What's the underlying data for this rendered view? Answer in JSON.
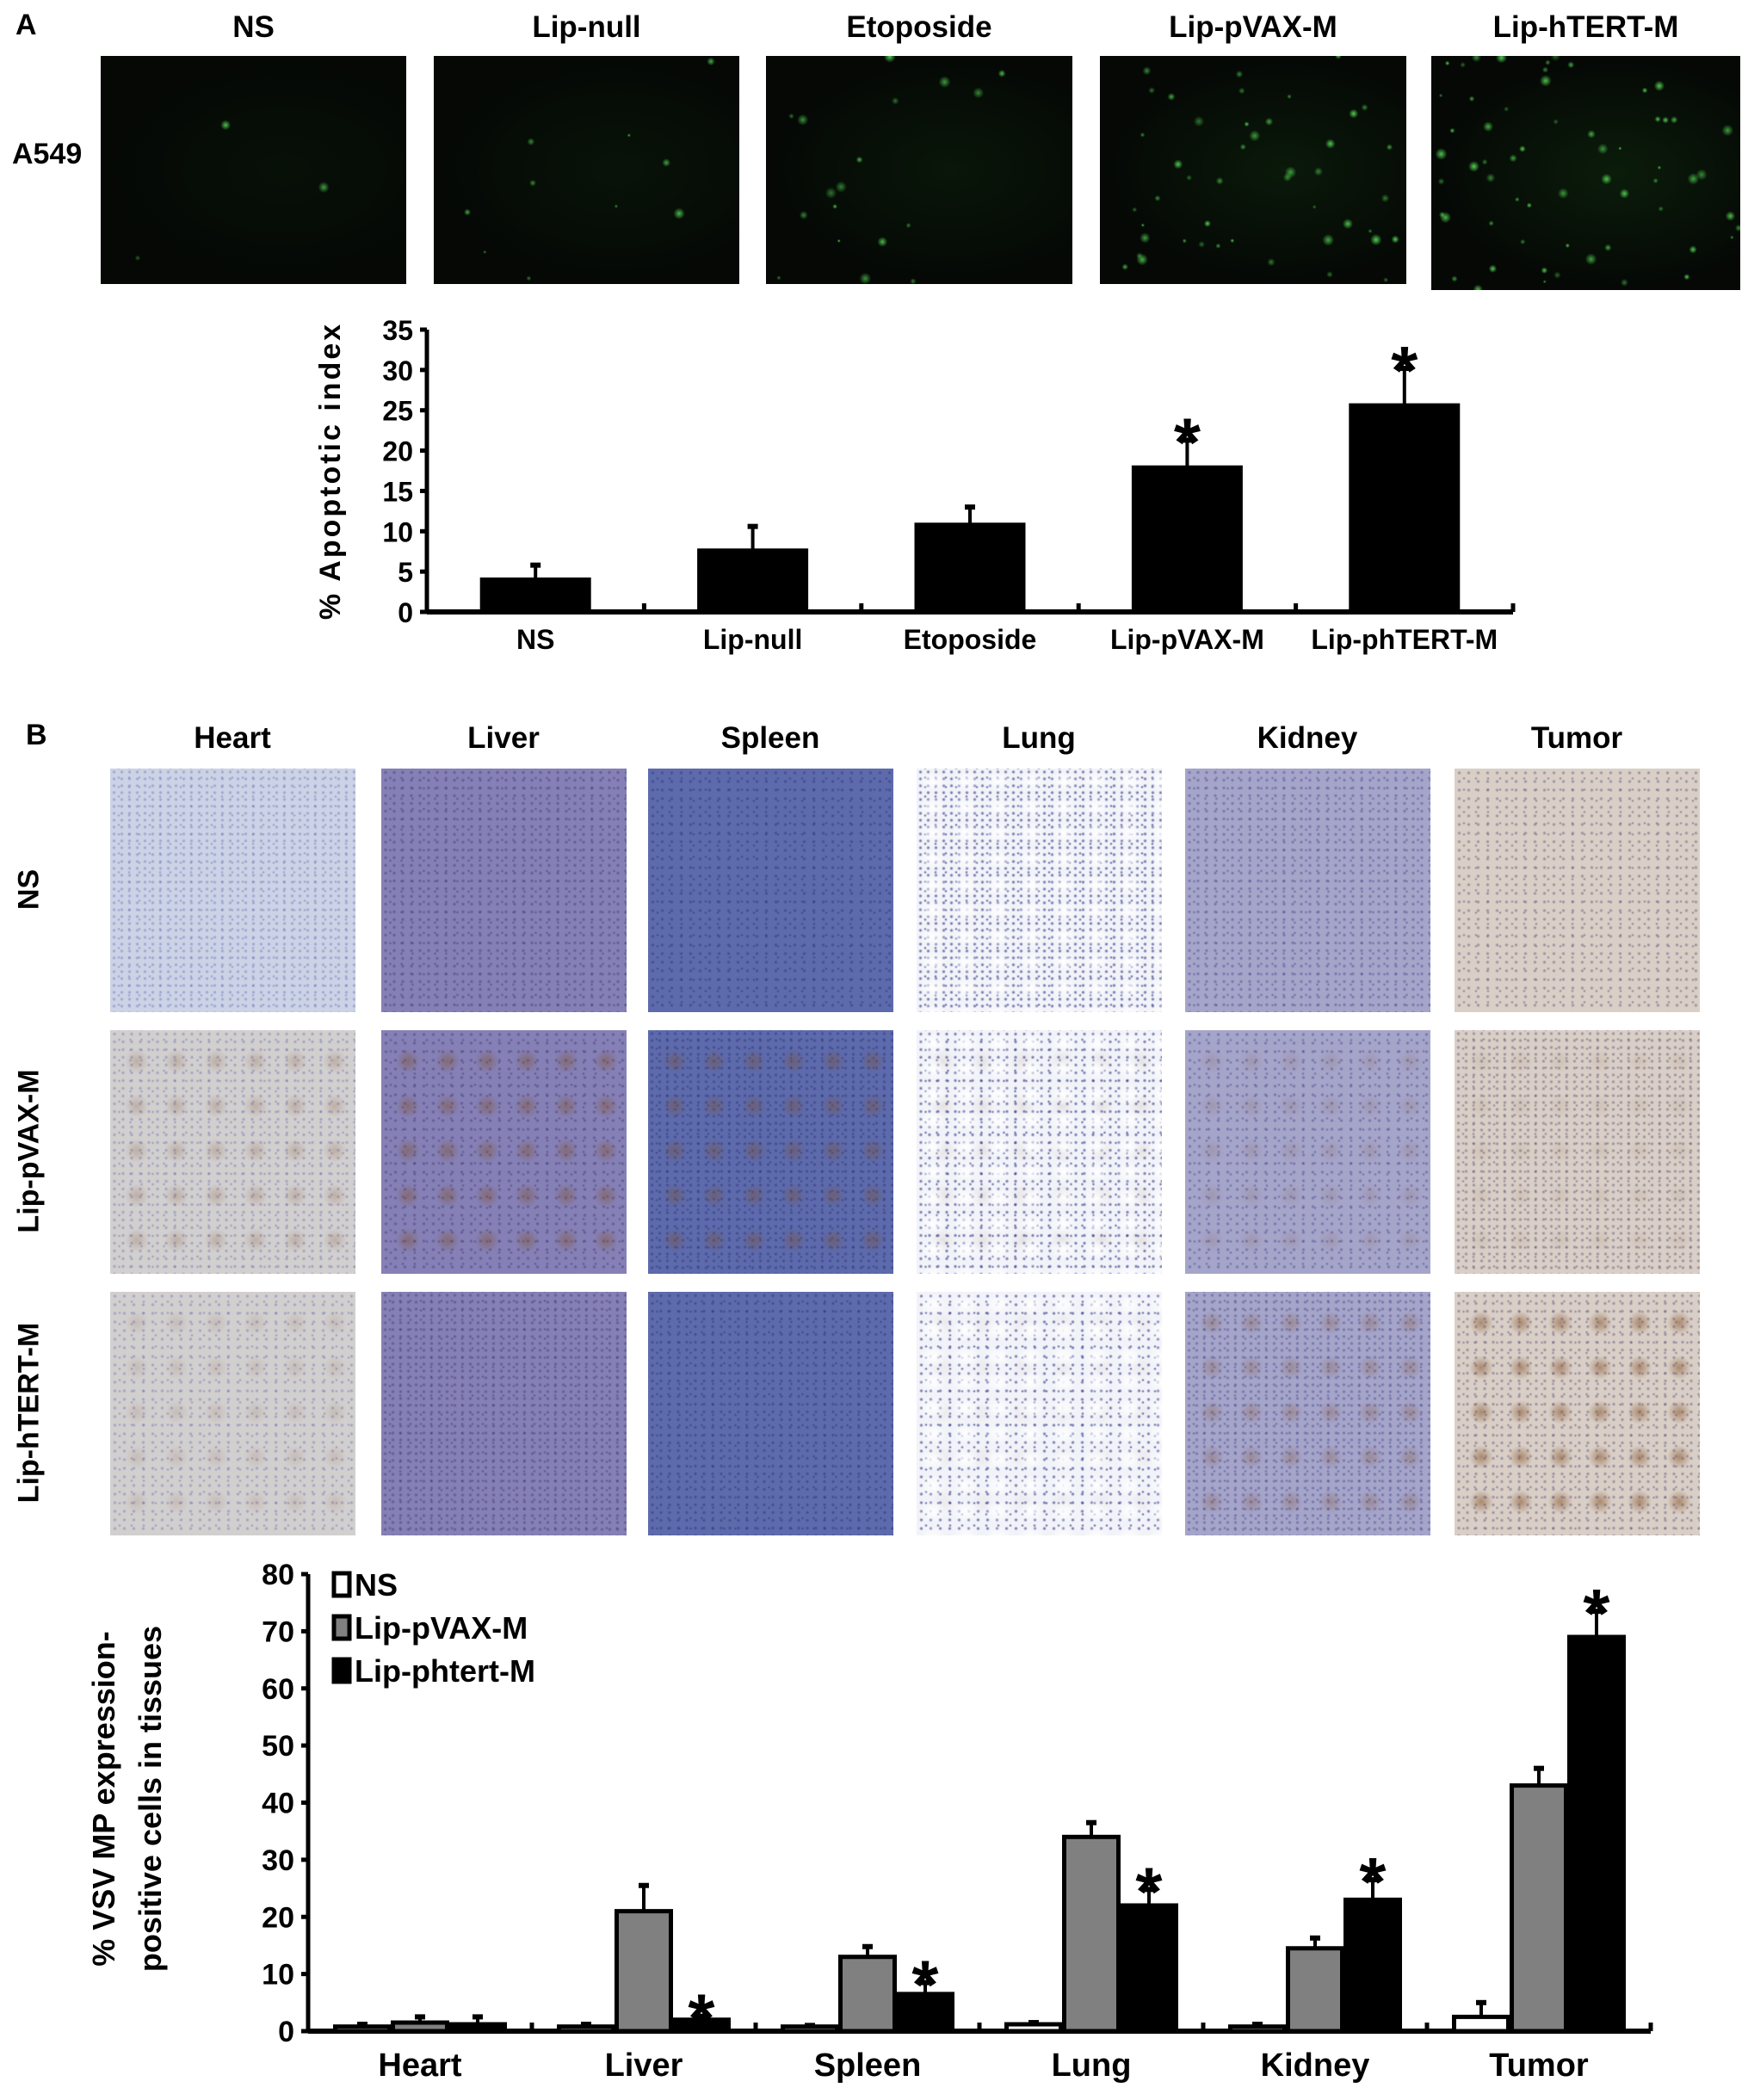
{
  "panel_a": {
    "label": "A",
    "image_headers": [
      "NS",
      "Lip-null",
      "Etoposide",
      "Lip-pVAX-M",
      "Lip-hTERT-M"
    ],
    "row_label": "A549"
  },
  "panel_b": {
    "label": "B",
    "column_headers": [
      "Heart",
      "Liver",
      "Spleen",
      "Lung",
      "Kidney",
      "Tumor"
    ],
    "row_labels": [
      "NS",
      "Lip-pVAX-M",
      "Lip-hTERT-M"
    ]
  },
  "chart_data": [
    {
      "type": "bar",
      "title": "",
      "xlabel": "",
      "ylabel": "% Apoptotic index",
      "ylim": [
        0,
        35
      ],
      "yticks": [
        "0",
        "5",
        "10",
        "15",
        "20",
        "25",
        "30",
        "35"
      ],
      "categories": [
        "NS",
        "Lip-null",
        "Etoposide",
        "Lip-pVAX-M",
        "Lip-phTERT-M"
      ],
      "values": [
        4.0,
        7.6,
        10.8,
        17.9,
        25.6
      ],
      "errors": [
        1.8,
        3.0,
        2.2,
        3.4,
        4.6
      ],
      "significance": [
        "",
        "",
        "",
        "*",
        "*"
      ],
      "bar_color": "#000000",
      "grid": false
    },
    {
      "type": "bar",
      "title": "",
      "xlabel": "",
      "ylabel": [
        "% VSV MP expression-",
        "positive cells in tissues"
      ],
      "ylim": [
        0,
        80
      ],
      "yticks": [
        "0",
        "10",
        "20",
        "30",
        "40",
        "50",
        "60",
        "70",
        "80"
      ],
      "categories": [
        "Heart",
        "Liver",
        "Spleen",
        "Lung",
        "Kidney",
        "Tumor"
      ],
      "legend_position": "top-left",
      "grid": false,
      "series": [
        {
          "name": "NS",
          "color": "#ffffff",
          "values": [
            0.8,
            0.8,
            0.8,
            1.2,
            0.8,
            2.5
          ],
          "errors": [
            0.4,
            0.4,
            0.2,
            0.3,
            0.4,
            2.5
          ]
        },
        {
          "name": "Lip-pVAX-M",
          "color": "#808080",
          "values": [
            1.5,
            21.0,
            13.0,
            34.0,
            14.5,
            43.0
          ],
          "errors": [
            1.0,
            4.5,
            1.8,
            2.5,
            1.8,
            3.0
          ]
        },
        {
          "name": "Lip-phtert-M",
          "color": "#000000",
          "values": [
            1.2,
            2.0,
            6.5,
            22.0,
            23.0,
            69.0
          ],
          "errors": [
            1.3,
            0.6,
            2.0,
            2.8,
            3.5,
            4.5
          ]
        }
      ],
      "significance_series": "Lip-phtert-M",
      "significance": [
        "",
        "*",
        "*",
        "*",
        "*",
        "*"
      ]
    }
  ]
}
